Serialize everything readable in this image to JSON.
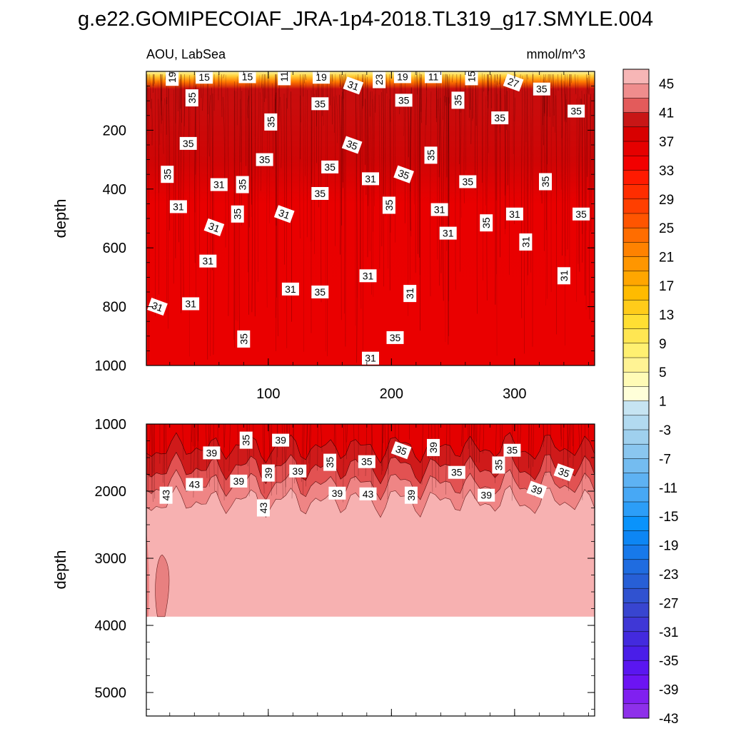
{
  "title": "g.e22.GOMIPECOIAF_JRA-1p4-2018.TL319_g17.SMYLE.004",
  "chart_data": [
    {
      "type": "heatmap",
      "panel": "upper",
      "left_label": "AOU, LabSea",
      "right_label": "mmol/m^3",
      "xlabel": "",
      "ylabel": "depth",
      "xlim": [
        1,
        365
      ],
      "ylim": [
        0,
        1000
      ],
      "y_reversed": true,
      "x_ticks": [
        "100",
        "200",
        "300"
      ],
      "x_tick_values": [
        100,
        200,
        300
      ],
      "y_ticks": [
        "200",
        "400",
        "600",
        "800",
        "1000"
      ],
      "y_tick_values": [
        200,
        400,
        600,
        800,
        1000
      ],
      "contour_labels": [
        {
          "text": "19",
          "x": 22,
          "y": 20
        },
        {
          "text": "15",
          "x": 48,
          "y": 20
        },
        {
          "text": "15",
          "x": 83,
          "y": 18
        },
        {
          "text": "11",
          "x": 113,
          "y": 18
        },
        {
          "text": "19",
          "x": 143,
          "y": 20
        },
        {
          "text": "31",
          "x": 169,
          "y": 48
        },
        {
          "text": "23",
          "x": 190,
          "y": 28
        },
        {
          "text": "19",
          "x": 209,
          "y": 18
        },
        {
          "text": "11",
          "x": 234,
          "y": 18
        },
        {
          "text": "15",
          "x": 265,
          "y": 18
        },
        {
          "text": "27",
          "x": 299,
          "y": 38
        },
        {
          "text": "35",
          "x": 322,
          "y": 60
        },
        {
          "text": "35",
          "x": 38,
          "y": 90
        },
        {
          "text": "35",
          "x": 142,
          "y": 110
        },
        {
          "text": "35",
          "x": 210,
          "y": 98
        },
        {
          "text": "35",
          "x": 254,
          "y": 98
        },
        {
          "text": "35",
          "x": 350,
          "y": 135
        },
        {
          "text": "35",
          "x": 288,
          "y": 158
        },
        {
          "text": "35",
          "x": 102,
          "y": 172
        },
        {
          "text": "35",
          "x": 35,
          "y": 245
        },
        {
          "text": "35",
          "x": 168,
          "y": 250
        },
        {
          "text": "35",
          "x": 232,
          "y": 285
        },
        {
          "text": "35",
          "x": 97,
          "y": 300
        },
        {
          "text": "35",
          "x": 150,
          "y": 325
        },
        {
          "text": "35",
          "x": 18,
          "y": 350
        },
        {
          "text": "35",
          "x": 210,
          "y": 350
        },
        {
          "text": "31",
          "x": 183,
          "y": 365
        },
        {
          "text": "35",
          "x": 325,
          "y": 375
        },
        {
          "text": "35",
          "x": 262,
          "y": 375
        },
        {
          "text": "31",
          "x": 60,
          "y": 385
        },
        {
          "text": "35",
          "x": 79,
          "y": 385
        },
        {
          "text": "35",
          "x": 142,
          "y": 415
        },
        {
          "text": "31",
          "x": 27,
          "y": 460
        },
        {
          "text": "35",
          "x": 198,
          "y": 455
        },
        {
          "text": "31",
          "x": 239,
          "y": 470
        },
        {
          "text": "31",
          "x": 113,
          "y": 485
        },
        {
          "text": "35",
          "x": 75,
          "y": 485
        },
        {
          "text": "31",
          "x": 300,
          "y": 485
        },
        {
          "text": "35",
          "x": 354,
          "y": 485
        },
        {
          "text": "35",
          "x": 277,
          "y": 515
        },
        {
          "text": "31",
          "x": 56,
          "y": 530
        },
        {
          "text": "31",
          "x": 246,
          "y": 550
        },
        {
          "text": "31",
          "x": 309,
          "y": 580
        },
        {
          "text": "31",
          "x": 51,
          "y": 645
        },
        {
          "text": "31",
          "x": 181,
          "y": 695
        },
        {
          "text": "31",
          "x": 340,
          "y": 695
        },
        {
          "text": "31",
          "x": 118,
          "y": 740
        },
        {
          "text": "35",
          "x": 142,
          "y": 750
        },
        {
          "text": "31",
          "x": 215,
          "y": 755
        },
        {
          "text": "31",
          "x": 37,
          "y": 790
        },
        {
          "text": "31",
          "x": 10,
          "y": 800
        },
        {
          "text": "35",
          "x": 80,
          "y": 910
        },
        {
          "text": "35",
          "x": 203,
          "y": 905
        },
        {
          "text": "31",
          "x": 183,
          "y": 975
        }
      ]
    },
    {
      "type": "heatmap",
      "panel": "lower",
      "xlabel": "",
      "ylabel": "depth",
      "xlim": [
        1,
        365
      ],
      "ylim": [
        1000,
        5350
      ],
      "y_reversed": true,
      "y_ticks": [
        "1000",
        "2000",
        "3000",
        "4000",
        "5000"
      ],
      "y_tick_values": [
        1000,
        2000,
        3000,
        4000,
        5000
      ],
      "x_tick_values": [
        100,
        200,
        300
      ],
      "ocean_bottom_depth": 3870,
      "contour_labels": [
        {
          "text": "35",
          "x": 82,
          "y": 1240
        },
        {
          "text": "39",
          "x": 110,
          "y": 1240
        },
        {
          "text": "39",
          "x": 54,
          "y": 1430
        },
        {
          "text": "35",
          "x": 150,
          "y": 1570
        },
        {
          "text": "35",
          "x": 180,
          "y": 1560
        },
        {
          "text": "35",
          "x": 208,
          "y": 1390
        },
        {
          "text": "39",
          "x": 234,
          "y": 1350
        },
        {
          "text": "35",
          "x": 298,
          "y": 1390
        },
        {
          "text": "35",
          "x": 253,
          "y": 1720
        },
        {
          "text": "35",
          "x": 287,
          "y": 1610
        },
        {
          "text": "35",
          "x": 340,
          "y": 1720
        },
        {
          "text": "39",
          "x": 76,
          "y": 1850
        },
        {
          "text": "39",
          "x": 100,
          "y": 1730
        },
        {
          "text": "39",
          "x": 124,
          "y": 1700
        },
        {
          "text": "43",
          "x": 40,
          "y": 1900
        },
        {
          "text": "43",
          "x": 17,
          "y": 2060
        },
        {
          "text": "39",
          "x": 156,
          "y": 2030
        },
        {
          "text": "43",
          "x": 181,
          "y": 2040
        },
        {
          "text": "39",
          "x": 216,
          "y": 2060
        },
        {
          "text": "39",
          "x": 277,
          "y": 2060
        },
        {
          "text": "39",
          "x": 318,
          "y": 1980
        },
        {
          "text": "43",
          "x": 96,
          "y": 2250
        }
      ]
    }
  ],
  "colorbar": {
    "levels": [
      "45",
      "41",
      "37",
      "33",
      "29",
      "25",
      "21",
      "17",
      "13",
      "9",
      "5",
      "1",
      "-3",
      "-7",
      "-11",
      "-15",
      "-19",
      "-23",
      "-27",
      "-31",
      "-35",
      "-39",
      "-43"
    ],
    "colors": [
      "#f7b6b6",
      "#ef8d8d",
      "#e35b5b",
      "#c81616",
      "#d80000",
      "#e60000",
      "#f20000",
      "#ff1a00",
      "#ff2d00",
      "#ff3f00",
      "#ff5500",
      "#ff6d00",
      "#ff8200",
      "#ff9600",
      "#ffa600",
      "#ffbb00",
      "#ffcc1a",
      "#ffdf33",
      "#ffe652",
      "#fff071",
      "#fff394",
      "#fffbb6",
      "#ffffd9",
      "#c6e4f2",
      "#b2daf0",
      "#9fd0ee",
      "#8ac6ef",
      "#74bcf0",
      "#5eb2f3",
      "#47a8f5",
      "#2c9ef8",
      "#0a93fb",
      "#0d86f4",
      "#1779ea",
      "#1f6ce0",
      "#275fd6",
      "#3052d0",
      "#3845d0",
      "#3f37d6",
      "#432ade",
      "#4a1ee8",
      "#5a16f0",
      "#6c14f3",
      "#8020f0",
      "#8e30ea"
    ]
  }
}
